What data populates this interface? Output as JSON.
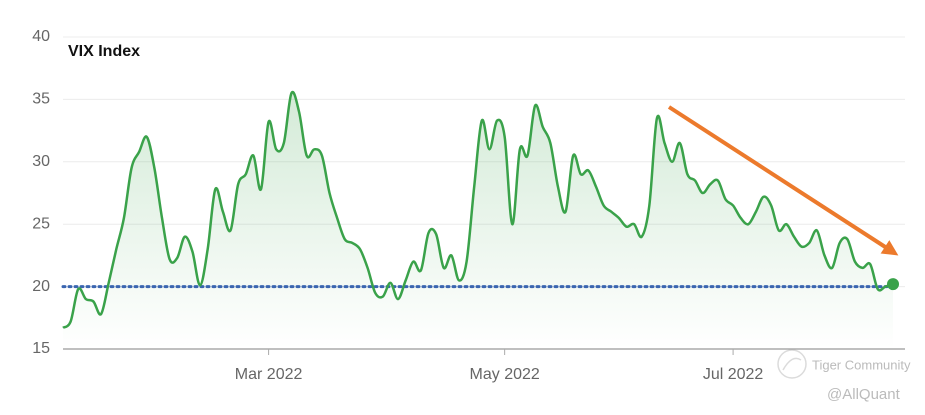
{
  "chart_data": {
    "type": "line",
    "title": "VIX Index",
    "categories": [
      null,
      null,
      null,
      null,
      null,
      null,
      null,
      null,
      null,
      null,
      null,
      null,
      null,
      null,
      null,
      null,
      null,
      null,
      null,
      null,
      null,
      null,
      null,
      null,
      null,
      null,
      null,
      "Mar 2022",
      null,
      null,
      null,
      null,
      null,
      null,
      null,
      null,
      null,
      null,
      null,
      null,
      null,
      null,
      null,
      null,
      null,
      null,
      null,
      null,
      null,
      null,
      null,
      null,
      null,
      null,
      null,
      null,
      null,
      null,
      "May 2022",
      null,
      null,
      null,
      null,
      null,
      null,
      null,
      null,
      null,
      null,
      null,
      null,
      null,
      null,
      null,
      null,
      null,
      null,
      null,
      null,
      null,
      null,
      null,
      null,
      null,
      null,
      null,
      null,
      null,
      "Jul 2022",
      null,
      null,
      null,
      null,
      null,
      null,
      null,
      null,
      null,
      null,
      null,
      null,
      null,
      null,
      null,
      null,
      null,
      null,
      null,
      null,
      null
    ],
    "series": [
      {
        "name": "VIX Index",
        "color": "#3aa24a",
        "values": [
          16.7,
          17.2,
          19.8,
          19.0,
          18.8,
          17.8,
          20.3,
          23.0,
          25.5,
          29.5,
          30.8,
          32.0,
          29.5,
          25.5,
          22.2,
          22.3,
          24.0,
          22.8,
          20.1,
          23.0,
          27.8,
          26.0,
          24.5,
          28.2,
          29.0,
          30.5,
          27.8,
          33.2,
          31.0,
          31.5,
          35.5,
          34.0,
          30.5,
          31.0,
          30.5,
          27.5,
          25.5,
          23.8,
          23.5,
          23.0,
          21.5,
          19.5,
          19.2,
          20.3,
          19.0,
          20.5,
          22.0,
          21.3,
          24.3,
          24.2,
          21.5,
          22.5,
          20.5,
          22.0,
          28.0,
          33.3,
          31.0,
          33.3,
          32.0,
          25.0,
          31.0,
          30.5,
          34.5,
          32.8,
          31.5,
          28.0,
          26.0,
          30.5,
          29.0,
          29.3,
          28.0,
          26.5,
          26.0,
          25.5,
          24.8,
          25.0,
          24.0,
          26.5,
          33.5,
          31.5,
          30.0,
          31.5,
          29.0,
          28.5,
          27.5,
          28.2,
          28.5,
          27.0,
          26.5,
          25.5,
          25.0,
          26.0,
          27.2,
          26.5,
          24.5,
          25.0,
          24.0,
          23.2,
          23.5,
          24.5,
          22.5,
          21.5,
          23.5,
          23.8,
          22.0,
          21.5,
          21.8,
          19.8,
          20.0,
          20.2
        ]
      }
    ],
    "reference_line": 20,
    "reference_color": "#3a65b0",
    "arrow_color": "#ec7a2c",
    "ylim": [
      15,
      40
    ],
    "yticks": [
      15,
      20,
      25,
      30,
      35,
      40
    ],
    "grid": true,
    "watermarks": [
      "Tiger Community",
      "@AllQuant"
    ]
  }
}
